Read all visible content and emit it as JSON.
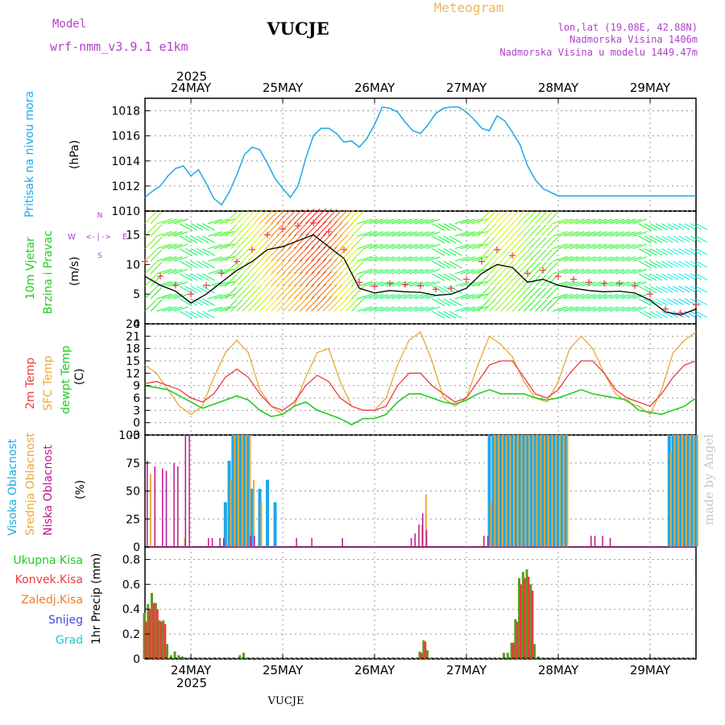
{
  "header": {
    "model_label": "Model",
    "model_name": "wrf-nmm_v3.9.1 e1km",
    "station": "VUCJE",
    "meteogram_label": "Meteogram",
    "lonlat": "lon,lat (19.08E, 42.88N)",
    "altitude": "Nadmorska Visina 1406m",
    "model_altitude": "Nadmorska Visina u modelu 1449.47m",
    "watermark": "made by Angel",
    "footer_station": "VUCJE",
    "year_top": "2025",
    "year_bottom": "2025"
  },
  "colors": {
    "pressure": "#1ca8e8",
    "temp2m": "#ee3c3c",
    "sfc": "#e8a838",
    "dewpt": "#22cc22",
    "cloud_high": "#1ca8e8",
    "cloud_mid": "#e8a838",
    "cloud_low": "#c0148c",
    "precip_total": "#55a020",
    "precip_conv": "#ee3c3c",
    "precip_frozen": "#ee7d2c",
    "snow": "#4646e0",
    "graupel": "#20c8c8",
    "wind_label": "#b040c8"
  },
  "chart_data": [
    {
      "type": "line",
      "title": "",
      "ylabel": "Pritisak na nivou mora",
      "unit": "(hPa)",
      "x_unit": "hours from 23MAY 12:00",
      "x_range": [
        0,
        144
      ],
      "xticks": [
        "24MAY",
        "25MAY",
        "26MAY",
        "27MAY",
        "28MAY",
        "29MAY"
      ],
      "ylim": [
        1010,
        1019
      ],
      "yticks": [
        1010,
        1012,
        1014,
        1016,
        1018
      ],
      "grid": true,
      "series": [
        {
          "name": "pressure",
          "x": [
            0,
            2,
            4,
            6,
            8,
            10,
            12,
            14,
            16,
            18,
            20,
            22,
            24,
            26,
            28,
            30,
            32,
            34,
            36,
            38,
            40,
            42,
            44,
            46,
            48,
            50,
            52,
            54,
            56,
            58,
            60,
            62,
            64,
            66,
            68,
            70,
            72,
            74,
            76,
            78,
            80,
            82,
            84,
            86,
            88,
            90,
            92,
            94,
            96,
            98,
            100,
            102,
            104,
            106,
            108,
            110,
            112,
            114,
            116,
            118,
            120,
            122,
            124,
            126,
            128,
            130,
            132,
            134,
            136,
            138,
            140,
            142,
            144
          ],
          "y": [
            1011.1,
            1011.6,
            1012.0,
            1012.8,
            1013.4,
            1013.6,
            1012.8,
            1013.3,
            1012.2,
            1011.0,
            1010.5,
            1011.5,
            1012.9,
            1014.5,
            1015.1,
            1014.9,
            1013.8,
            1012.6,
            1011.8,
            1011.1,
            1012.0,
            1014.2,
            1016.0,
            1016.6,
            1016.6,
            1016.2,
            1015.5,
            1015.6,
            1015.1,
            1015.8,
            1016.9,
            1018.3,
            1018.2,
            1017.9,
            1017.1,
            1016.4,
            1016.2,
            1016.9,
            1017.8,
            1018.2,
            1018.3,
            1018.3,
            1017.9,
            1017.3,
            1016.6,
            1016.4,
            1017.6,
            1017.2,
            1016.3,
            1015.3,
            1013.6,
            1012.5,
            1011.8,
            1011.5,
            1011.2,
            1011.2,
            1011.2,
            1011.2,
            1011.2,
            1011.2,
            1011.2,
            1011.2,
            1011.2,
            1011.2,
            1011.2,
            1011.2,
            1011.2,
            1011.2,
            1011.2,
            1011.2,
            1011.2,
            1011.2,
            1011.2
          ]
        }
      ]
    },
    {
      "type": "line",
      "ylabel": "10m Vjetar Brzina i Pravac",
      "unit": "(m/s)",
      "ylim": [
        0,
        19
      ],
      "yticks": [
        0,
        5,
        10,
        15
      ],
      "compass": [
        "N",
        "E",
        "S",
        "W"
      ],
      "series": [
        {
          "name": "speed",
          "x": [
            0,
            4,
            8,
            12,
            16,
            20,
            24,
            28,
            32,
            36,
            40,
            44,
            48,
            52,
            56,
            60,
            64,
            68,
            72,
            76,
            80,
            84,
            88,
            92,
            96,
            100,
            104,
            108,
            112,
            116,
            120,
            124,
            128,
            132,
            136,
            140,
            144
          ],
          "y": [
            8.0,
            6.5,
            5.5,
            3.5,
            5.0,
            7.0,
            9.0,
            10.5,
            12.5,
            13.0,
            14.0,
            15.0,
            13.0,
            11.0,
            6.0,
            5.2,
            5.6,
            5.4,
            5.3,
            4.8,
            5.0,
            6.0,
            8.5,
            10.0,
            9.5,
            7.0,
            7.5,
            6.5,
            6.0,
            5.6,
            5.4,
            5.5,
            5.2,
            4.0,
            2.0,
            1.5,
            2.5
          ]
        },
        {
          "name": "gust",
          "x": [
            0,
            4,
            8,
            12,
            16,
            20,
            24,
            28,
            32,
            36,
            40,
            44,
            48,
            52,
            56,
            60,
            64,
            68,
            72,
            76,
            80,
            84,
            88,
            92,
            96,
            100,
            104,
            108,
            112,
            116,
            120,
            124,
            128,
            132,
            136,
            140,
            144
          ],
          "y": [
            10.5,
            8.0,
            6.5,
            5.0,
            6.5,
            8.5,
            10.5,
            12.5,
            15.0,
            16.0,
            16.5,
            17.0,
            15.5,
            12.5,
            7.0,
            6.3,
            6.8,
            6.6,
            6.4,
            5.8,
            6.0,
            7.5,
            10.5,
            12.5,
            11.5,
            8.5,
            9.0,
            8.0,
            7.5,
            7.0,
            6.8,
            6.8,
            6.4,
            5.0,
            2.5,
            1.8,
            3.2
          ]
        }
      ]
    },
    {
      "type": "line",
      "ylabel": "2m Temp / SFC Temp / dewpt Temp",
      "unit": "(C)",
      "ylim": [
        -3,
        24
      ],
      "yticks": [
        -3,
        0,
        3,
        6,
        9,
        12,
        15,
        18,
        21,
        24
      ],
      "series": [
        {
          "name": "2m Temp",
          "x": [
            0,
            3,
            6,
            9,
            12,
            15,
            18,
            21,
            24,
            27,
            30,
            33,
            36,
            39,
            42,
            45,
            48,
            51,
            54,
            57,
            60,
            63,
            66,
            69,
            72,
            75,
            78,
            81,
            84,
            87,
            90,
            93,
            96,
            99,
            102,
            105,
            108,
            111,
            114,
            117,
            120,
            123,
            126,
            129,
            132,
            135,
            138,
            141,
            144
          ],
          "y": [
            9.5,
            10,
            9,
            8,
            6,
            5,
            7,
            11,
            13,
            11,
            7,
            4,
            3,
            5,
            9,
            11.5,
            10,
            6,
            4,
            3,
            3,
            4,
            9,
            12,
            12,
            9,
            7,
            5,
            6,
            10,
            14,
            15,
            15,
            11,
            7,
            6,
            8,
            12,
            15,
            15,
            12,
            8,
            6,
            5,
            4,
            7,
            11,
            14,
            15
          ]
        },
        {
          "name": "SFC Temp",
          "x": [
            0,
            3,
            6,
            9,
            12,
            15,
            18,
            21,
            24,
            27,
            30,
            33,
            36,
            39,
            42,
            45,
            48,
            51,
            54,
            57,
            60,
            63,
            66,
            69,
            72,
            75,
            78,
            81,
            84,
            87,
            90,
            93,
            96,
            99,
            102,
            105,
            108,
            111,
            114,
            117,
            120,
            123,
            126,
            129,
            132,
            135,
            138,
            141,
            144
          ],
          "y": [
            14,
            12,
            8,
            4,
            2,
            4,
            11,
            17,
            20,
            17,
            8,
            4,
            2,
            4,
            11,
            17,
            18,
            10,
            4,
            3,
            3,
            6,
            14,
            20,
            22,
            15,
            6,
            4,
            6,
            14,
            21,
            19,
            16,
            10,
            6,
            5,
            10,
            18,
            21,
            18,
            12,
            7,
            5,
            4,
            2,
            8,
            17,
            20,
            22
          ]
        },
        {
          "name": "dewpt Temp",
          "x": [
            0,
            3,
            6,
            9,
            12,
            15,
            18,
            21,
            24,
            27,
            30,
            33,
            36,
            39,
            42,
            45,
            48,
            51,
            54,
            57,
            60,
            63,
            66,
            69,
            72,
            75,
            78,
            81,
            84,
            87,
            90,
            93,
            96,
            99,
            102,
            105,
            108,
            111,
            114,
            117,
            120,
            123,
            126,
            129,
            132,
            135,
            138,
            141,
            144
          ],
          "y": [
            9,
            8.5,
            8,
            6.5,
            5,
            3.5,
            4.5,
            5.5,
            6.5,
            5.5,
            3,
            1.5,
            2,
            4,
            5,
            3,
            2,
            1,
            -0.5,
            1,
            1,
            2,
            5,
            7,
            7,
            6,
            5,
            4.5,
            5.5,
            7,
            8,
            7,
            7,
            7,
            6,
            5.5,
            6,
            7,
            8,
            7,
            6.5,
            6,
            5.5,
            3,
            2.5,
            2,
            3,
            4,
            6
          ]
        }
      ]
    },
    {
      "type": "bar",
      "ylabel": "Visoka Oblacnost / Srednja Oblacnost / Niska Oblacnost",
      "unit": "(%)",
      "ylim": [
        0,
        100
      ],
      "yticks": [
        0,
        25,
        50,
        75,
        100
      ],
      "series": [
        {
          "name": "Visoka Oblacnost",
          "x": [
            21,
            22,
            23,
            24,
            25,
            26,
            27,
            28,
            30,
            32,
            34,
            90,
            91,
            92,
            93,
            94,
            95,
            96,
            97,
            98,
            99,
            100,
            101,
            102,
            103,
            104,
            105,
            106,
            107,
            108,
            109,
            110,
            137,
            138,
            139,
            140,
            141,
            142,
            143,
            144
          ],
          "y": [
            40,
            77,
            100,
            100,
            100,
            100,
            100,
            52,
            52,
            60,
            40,
            100,
            100,
            100,
            100,
            100,
            100,
            100,
            100,
            100,
            100,
            100,
            100,
            100,
            100,
            100,
            100,
            100,
            100,
            100,
            100,
            100,
            100,
            100,
            100,
            100,
            100,
            100,
            100,
            100
          ]
        },
        {
          "name": "Srednja Oblacnost",
          "x": [
            1,
            10,
            22,
            23,
            24,
            25,
            26,
            27,
            28,
            30,
            72,
            73,
            90,
            91,
            92,
            93,
            94,
            95,
            96,
            97,
            98,
            99,
            100,
            101,
            102,
            103,
            104,
            105,
            106,
            107,
            108,
            109,
            110,
            137,
            138,
            139,
            140,
            141,
            142,
            143,
            144
          ],
          "y": [
            65,
            8,
            60,
            100,
            100,
            100,
            100,
            100,
            60,
            40,
            20,
            47,
            40,
            100,
            100,
            100,
            100,
            100,
            100,
            100,
            100,
            100,
            100,
            100,
            100,
            100,
            100,
            100,
            100,
            100,
            100,
            100,
            100,
            85,
            100,
            100,
            100,
            100,
            100,
            100,
            100
          ]
        },
        {
          "name": "Niska Oblacnost",
          "x": [
            1,
            3,
            5,
            6,
            8,
            9,
            11,
            12,
            17,
            18,
            20,
            21,
            28,
            29,
            40,
            44,
            52,
            70,
            71,
            72,
            73,
            74,
            89,
            90,
            117,
            118,
            120,
            122
          ],
          "y": [
            77,
            72,
            70,
            68,
            75,
            72,
            100,
            100,
            8,
            8,
            8,
            8,
            10,
            10,
            8,
            8,
            8,
            8,
            12,
            20,
            30,
            15,
            10,
            10,
            10,
            10,
            10,
            8
          ]
        }
      ]
    },
    {
      "type": "bar",
      "ylabel": "1hr Precip",
      "unit": "(mm)",
      "ylim": [
        0,
        0.9
      ],
      "yticks": [
        0,
        0.2,
        0.4,
        0.6,
        0.8
      ],
      "series": [
        {
          "name": "Ukupna Kisa",
          "x": [
            0,
            1,
            2,
            3,
            4,
            5,
            6,
            7,
            8,
            9,
            10,
            15,
            25,
            26,
            72,
            73,
            74,
            94,
            95,
            96,
            97,
            98,
            99,
            100,
            101,
            102,
            103
          ],
          "y": [
            0.37,
            0.44,
            0.53,
            0.45,
            0.31,
            0.31,
            0.12,
            0.03,
            0.06,
            0.03,
            0.02,
            0.01,
            0.03,
            0.05,
            0.06,
            0.15,
            0.07,
            0.05,
            0.05,
            0.13,
            0.32,
            0.65,
            0.7,
            0.72,
            0.6,
            0.12,
            0.02
          ]
        },
        {
          "name": "Konvek.Kisa",
          "x": [
            0,
            1,
            2,
            3,
            4,
            5,
            72,
            73,
            96,
            97,
            98,
            99,
            100,
            101
          ],
          "y": [
            0.3,
            0.4,
            0.45,
            0.4,
            0.3,
            0.28,
            0.05,
            0.14,
            0.13,
            0.3,
            0.6,
            0.65,
            0.66,
            0.55
          ]
        },
        {
          "name": "Zaledj.Kisa",
          "x": [],
          "y": []
        },
        {
          "name": "Snijeg",
          "x": [],
          "y": []
        },
        {
          "name": "Grad",
          "x": [],
          "y": []
        }
      ]
    }
  ]
}
